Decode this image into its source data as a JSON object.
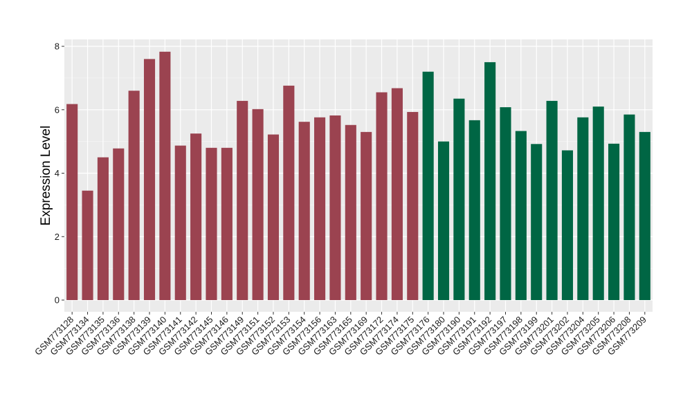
{
  "chart_data": {
    "type": "bar",
    "title": "",
    "xlabel": "",
    "ylabel": "Expression Level",
    "ylim": [
      0,
      8.2
    ],
    "yticks": [
      0,
      2,
      4,
      6,
      8
    ],
    "grid": true,
    "legend": "none",
    "categories": [
      "GSM773128",
      "GSM773134",
      "GSM773135",
      "GSM773136",
      "GSM773138",
      "GSM773139",
      "GSM773140",
      "GSM773141",
      "GSM773142",
      "GSM773145",
      "GSM773146",
      "GSM773149",
      "GSM773151",
      "GSM773152",
      "GSM773153",
      "GSM773154",
      "GSM773156",
      "GSM773163",
      "GSM773165",
      "GSM773169",
      "GSM773172",
      "GSM773174",
      "GSM773175",
      "GSM773176",
      "GSM773180",
      "GSM773190",
      "GSM773191",
      "GSM773192",
      "GSM773197",
      "GSM773198",
      "GSM773199",
      "GSM773201",
      "GSM773202",
      "GSM773204",
      "GSM773205",
      "GSM773206",
      "GSM773208",
      "GSM773209"
    ],
    "values": [
      6.18,
      3.45,
      4.5,
      4.78,
      6.6,
      7.6,
      7.83,
      4.87,
      5.25,
      4.8,
      4.8,
      6.28,
      6.02,
      5.22,
      6.76,
      5.62,
      5.76,
      5.82,
      5.52,
      5.3,
      6.55,
      6.68,
      5.93,
      7.2,
      5.0,
      6.35,
      5.67,
      7.5,
      6.08,
      5.33,
      4.92,
      6.28,
      4.72,
      5.76,
      6.1,
      4.93,
      5.85,
      5.3
    ],
    "groups": [
      0,
      0,
      0,
      0,
      0,
      0,
      0,
      0,
      0,
      0,
      0,
      0,
      0,
      0,
      0,
      0,
      0,
      0,
      0,
      0,
      0,
      0,
      0,
      1,
      1,
      1,
      1,
      1,
      1,
      1,
      1,
      1,
      1,
      1,
      1,
      1,
      1,
      1
    ],
    "group_colors": [
      "#9b4350",
      "#006644"
    ],
    "panel_background": "#ebebeb",
    "grid_color": "#ffffff"
  }
}
